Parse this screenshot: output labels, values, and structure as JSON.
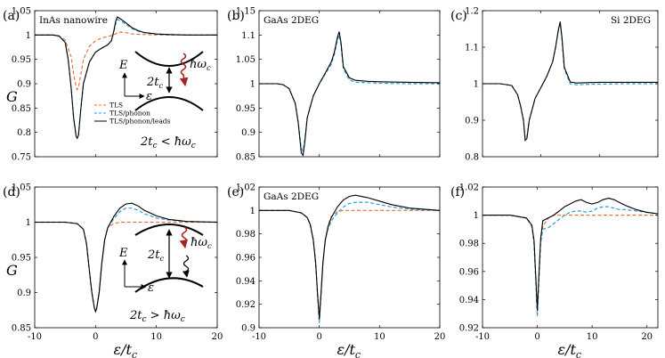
{
  "colors": {
    "tls": "#e8743b",
    "phonon": "#2a9ed8",
    "leads": "#000000",
    "arrow": "#a52525"
  },
  "legend": [
    "TLS",
    "TLS/phonon",
    "TLS/phonon/leads"
  ],
  "inset": {
    "e_label": "E",
    "eps_label": "ε",
    "gap_label": "2t",
    "gap_sub": "c",
    "photon_label": "ħω",
    "photon_sub": "c"
  },
  "axis_labels": {
    "x": "ε/t",
    "x_sub": "c",
    "y": "G"
  },
  "chart_data": [
    {
      "type": "line",
      "panel": "(a)",
      "title": "InAs nanowire",
      "xlim": [
        -10,
        20
      ],
      "ylim": [
        0.75,
        1.05
      ],
      "xticks": [],
      "yticks": [
        0.75,
        0.8,
        0.85,
        0.9,
        0.95,
        1,
        1.05
      ],
      "ytick_labels": [
        "0.75",
        "0.8",
        "0.85",
        "0.9",
        "0.95",
        "1",
        "1.05"
      ],
      "annotation": "2t_c < ħω_c",
      "series": [
        {
          "name": "TLS",
          "x": [
            -10,
            -7,
            -6,
            -5,
            -4,
            -3.6,
            -3.2,
            -3,
            -2.8,
            -2.4,
            -2,
            -1,
            0,
            1,
            2,
            3,
            3.5,
            4,
            5,
            6,
            8,
            10,
            15,
            20
          ],
          "y": [
            1,
            1,
            0.998,
            0.99,
            0.955,
            0.92,
            0.893,
            0.888,
            0.893,
            0.92,
            0.95,
            0.977,
            0.988,
            0.994,
            0.997,
            1.0,
            1.004,
            1.006,
            1.005,
            1.002,
            1.001,
            1,
            1,
            1
          ]
        },
        {
          "name": "TLS/phonon",
          "x": [
            -10,
            -7,
            -6,
            -5,
            -4.5,
            -4,
            -3.6,
            -3.2,
            -3,
            -2.8,
            -2.4,
            -2,
            -1,
            0,
            1,
            2,
            2.6,
            3,
            3.3,
            3.6,
            4,
            5,
            6,
            7,
            8,
            10,
            12,
            15,
            20
          ],
          "y": [
            1,
            1,
            0.998,
            0.985,
            0.95,
            0.89,
            0.83,
            0.792,
            0.788,
            0.795,
            0.85,
            0.9,
            0.945,
            0.965,
            0.973,
            0.98,
            0.988,
            1.005,
            1.023,
            1.032,
            1.03,
            1.022,
            1.013,
            1.008,
            1.005,
            1.002,
            1.001,
            1,
            1
          ]
        },
        {
          "name": "TLS/phonon/leads",
          "x": [
            -10,
            -7,
            -6,
            -5,
            -4.5,
            -4,
            -3.6,
            -3.2,
            -3,
            -2.8,
            -2.4,
            -2,
            -1,
            0,
            1,
            2,
            2.6,
            3,
            3.3,
            3.6,
            4,
            5,
            6,
            7,
            8,
            10,
            12,
            15,
            20
          ],
          "y": [
            1,
            1,
            0.998,
            0.985,
            0.95,
            0.89,
            0.83,
            0.792,
            0.788,
            0.795,
            0.85,
            0.9,
            0.945,
            0.965,
            0.973,
            0.98,
            0.988,
            1.008,
            1.028,
            1.037,
            1.034,
            1.025,
            1.015,
            1.009,
            1.005,
            1.002,
            1.001,
            1,
            1
          ]
        }
      ]
    },
    {
      "type": "line",
      "panel": "(b)",
      "title": "GaAs 2DEG",
      "xlim": [
        -10,
        20
      ],
      "ylim": [
        0.85,
        1.15
      ],
      "xticks": [],
      "yticks": [
        0.85,
        0.9,
        0.95,
        1,
        1.05,
        1.1,
        1.15
      ],
      "ytick_labels": [
        "0.85",
        "0.9",
        "0.95",
        "1",
        "1.05",
        "1.1",
        "1.15"
      ],
      "annotation": "",
      "series": [
        {
          "name": "TLS/phonon",
          "x": [
            -10,
            -7,
            -6,
            -5,
            -4,
            -3.5,
            -3,
            -2.7,
            -2.4,
            -2,
            -1,
            0,
            1,
            2,
            2.5,
            3,
            3.3,
            3.6,
            4,
            5,
            6,
            8,
            10,
            15,
            20
          ],
          "y": [
            1,
            1,
            0.998,
            0.99,
            0.96,
            0.92,
            0.868,
            0.862,
            0.885,
            0.93,
            0.975,
            1.0,
            1.02,
            1.04,
            1.06,
            1.09,
            1.1,
            1.08,
            1.03,
            1.008,
            1.003,
            1.002,
            1.001,
            1,
            1
          ]
        },
        {
          "name": "TLS/phonon/leads",
          "x": [
            -10,
            -7,
            -6,
            -5,
            -4,
            -3.5,
            -3,
            -2.7,
            -2.4,
            -2,
            -1,
            0,
            1,
            2,
            2.5,
            3,
            3.3,
            3.6,
            4,
            5,
            6,
            8,
            10,
            15,
            20
          ],
          "y": [
            1,
            1,
            0.998,
            0.99,
            0.96,
            0.92,
            0.858,
            0.853,
            0.88,
            0.93,
            0.975,
            1.0,
            1.022,
            1.045,
            1.065,
            1.095,
            1.107,
            1.085,
            1.035,
            1.012,
            1.007,
            1.005,
            1.004,
            1.003,
            1.002
          ]
        }
      ]
    },
    {
      "type": "line",
      "panel": "(c)",
      "title": "Si 2DEG",
      "xlim": [
        -10,
        20
      ],
      "ylim": [
        0.8,
        1.2
      ],
      "xticks": [],
      "yticks": [
        0.8,
        0.9,
        1,
        1.1,
        1.2
      ],
      "ytick_labels": [
        "0.8",
        "0.9",
        "1",
        "1.1",
        "1.2"
      ],
      "annotation": "",
      "series": [
        {
          "name": "TLS/phonon",
          "x": [
            -10,
            -7,
            -5,
            -4,
            -3.5,
            -3,
            -2.7,
            -2.4,
            -2,
            -1,
            0,
            1,
            2,
            2.5,
            3,
            3.3,
            3.6,
            4,
            5,
            6,
            8,
            10,
            15,
            20
          ],
          "y": [
            1,
            1,
            0.995,
            0.97,
            0.94,
            0.9,
            0.85,
            0.855,
            0.9,
            0.96,
            0.99,
            1.02,
            1.06,
            1.1,
            1.15,
            1.165,
            1.12,
            1.04,
            1.0,
            0.997,
            0.998,
            0.999,
            1,
            1
          ]
        },
        {
          "name": "TLS/phonon/leads",
          "x": [
            -10,
            -7,
            -5,
            -4,
            -3.5,
            -3,
            -2.7,
            -2.4,
            -2,
            -1,
            0,
            1,
            2,
            2.5,
            3,
            3.3,
            3.6,
            4,
            5,
            6,
            8,
            10,
            15,
            20
          ],
          "y": [
            1,
            1,
            0.995,
            0.97,
            0.94,
            0.9,
            0.845,
            0.85,
            0.9,
            0.96,
            0.99,
            1.02,
            1.06,
            1.1,
            1.15,
            1.17,
            1.125,
            1.045,
            1.005,
            1.002,
            1.003,
            1.004,
            1.004,
            1.004
          ]
        }
      ]
    },
    {
      "type": "line",
      "panel": "(d)",
      "title": "",
      "xlim": [
        -10,
        20
      ],
      "ylim": [
        0.85,
        1.05
      ],
      "xticks": [
        -10,
        0,
        10,
        20
      ],
      "xtick_labels": [
        "-10",
        "0",
        "10",
        "20"
      ],
      "yticks": [
        0.85,
        0.9,
        0.95,
        1,
        1.05
      ],
      "ytick_labels": [
        "0.85",
        "0.9",
        "0.95",
        "1",
        "1.05"
      ],
      "annotation": "2t_c > ħω_c",
      "series": [
        {
          "name": "TLS",
          "x": [
            -10,
            -5,
            -3,
            -2,
            -1.5,
            -1,
            -0.6,
            -0.2,
            0,
            0.2,
            0.6,
            1,
            1.5,
            2,
            3,
            4,
            5,
            10,
            20
          ],
          "y": [
            1,
            1,
            0.998,
            0.99,
            0.97,
            0.93,
            0.9,
            0.878,
            0.875,
            0.878,
            0.9,
            0.94,
            0.975,
            0.992,
            0.998,
            1,
            1,
            1,
            1
          ]
        },
        {
          "name": "TLS/phonon",
          "x": [
            -10,
            -5,
            -3,
            -2,
            -1.5,
            -1,
            -0.6,
            -0.2,
            0,
            0.2,
            0.6,
            1,
            1.5,
            2,
            3,
            4,
            5,
            6,
            7,
            8,
            10,
            12,
            15,
            20
          ],
          "y": [
            1,
            1,
            0.998,
            0.99,
            0.97,
            0.93,
            0.9,
            0.878,
            0.873,
            0.878,
            0.9,
            0.94,
            0.975,
            0.992,
            1.005,
            1.015,
            1.02,
            1.02,
            1.017,
            1.012,
            1.006,
            1.003,
            1.001,
            1
          ]
        },
        {
          "name": "TLS/phonon/leads",
          "x": [
            -10,
            -5,
            -3,
            -2,
            -1.5,
            -1,
            -0.6,
            -0.2,
            0,
            0.2,
            0.6,
            1,
            1.5,
            2,
            3,
            4,
            5,
            6,
            7,
            8,
            10,
            12,
            15,
            20
          ],
          "y": [
            1,
            1,
            0.998,
            0.99,
            0.97,
            0.93,
            0.9,
            0.878,
            0.873,
            0.878,
            0.9,
            0.94,
            0.975,
            0.992,
            1.008,
            1.02,
            1.026,
            1.027,
            1.023,
            1.017,
            1.009,
            1.004,
            1.001,
            1
          ]
        }
      ]
    },
    {
      "type": "line",
      "panel": "(e)",
      "title": "GaAs 2DEG",
      "xlim": [
        -10,
        20
      ],
      "ylim": [
        0.9,
        1.02
      ],
      "xticks": [
        -10,
        0,
        10,
        20
      ],
      "xtick_labels": [
        "-10",
        "0",
        "10",
        "20"
      ],
      "yticks": [
        0.9,
        0.92,
        0.94,
        0.96,
        0.98,
        1,
        1.02
      ],
      "ytick_labels": [
        "0.9",
        "0.92",
        "0.94",
        "0.96",
        "0.98",
        "1",
        "1.02"
      ],
      "annotation": "",
      "series": [
        {
          "name": "TLS",
          "x": [
            -10,
            -5,
            -3,
            -2,
            -1.5,
            -1,
            -0.6,
            -0.3,
            0,
            0.3,
            0.6,
            1,
            1.5,
            2,
            3,
            4,
            5,
            10,
            20
          ],
          "y": [
            1,
            1,
            0.998,
            0.994,
            0.988,
            0.975,
            0.955,
            0.93,
            0.91,
            0.93,
            0.955,
            0.975,
            0.988,
            0.995,
            0.999,
            1,
            1,
            1,
            1
          ]
        },
        {
          "name": "TLS/phonon",
          "x": [
            -10,
            -5,
            -3,
            -2,
            -1.5,
            -1,
            -0.6,
            -0.3,
            0,
            0.3,
            0.6,
            1,
            1.5,
            2,
            3,
            4,
            5,
            6,
            8,
            10,
            12,
            15,
            20
          ],
          "y": [
            1,
            1,
            0.998,
            0.994,
            0.988,
            0.975,
            0.955,
            0.93,
            0.904,
            0.93,
            0.955,
            0.975,
            0.985,
            0.991,
            0.998,
            1.003,
            1.006,
            1.007,
            1.007,
            1.005,
            1.003,
            1.001,
            1
          ]
        },
        {
          "name": "TLS/phonon/leads",
          "x": [
            -10,
            -5,
            -3,
            -2,
            -1.5,
            -1,
            -0.6,
            -0.3,
            0,
            0.3,
            0.6,
            1,
            1.5,
            2,
            3,
            4,
            5,
            6,
            8,
            10,
            12,
            15,
            20
          ],
          "y": [
            1,
            1,
            0.998,
            0.994,
            0.988,
            0.975,
            0.955,
            0.93,
            0.907,
            0.93,
            0.955,
            0.975,
            0.987,
            0.994,
            1.003,
            1.009,
            1.012,
            1.013,
            1.011,
            1.008,
            1.005,
            1.002,
            1
          ]
        }
      ]
    },
    {
      "type": "line",
      "panel": "(f)",
      "title": "",
      "xlim": [
        -10,
        22
      ],
      "ylim": [
        0.92,
        1.02
      ],
      "xticks": [
        -10,
        0,
        10,
        20
      ],
      "xtick_labels": [
        "-10",
        "0",
        "10",
        "20"
      ],
      "yticks": [
        0.92,
        0.94,
        0.96,
        0.98,
        1,
        1.02
      ],
      "ytick_labels": [
        "0.92",
        "0.94",
        "0.96",
        "0.98",
        "1",
        "1.02"
      ],
      "annotation": "",
      "series": [
        {
          "name": "TLS",
          "x": [
            -10,
            -5,
            -2,
            -1,
            -0.6,
            -0.3,
            0,
            0.3,
            0.6,
            1,
            2,
            3,
            4,
            10,
            22
          ],
          "y": [
            1,
            1,
            0.998,
            0.992,
            0.98,
            0.955,
            0.932,
            0.955,
            0.98,
            0.992,
            0.998,
            1,
            1,
            1,
            1
          ]
        },
        {
          "name": "TLS/phonon",
          "x": [
            -10,
            -5,
            -2,
            -1,
            -0.6,
            -0.3,
            0,
            0.3,
            0.6,
            1,
            2,
            3,
            4,
            5,
            6,
            7,
            8,
            9,
            10,
            11,
            12,
            13,
            14,
            15,
            16,
            18,
            20,
            22
          ],
          "y": [
            1,
            1,
            0.998,
            0.992,
            0.98,
            0.955,
            0.928,
            0.955,
            0.98,
            0.99,
            0.991,
            0.994,
            0.997,
            1.0,
            1.002,
            1.003,
            1.003,
            1.002,
            1.003,
            1.005,
            1.006,
            1.006,
            1.005,
            1.004,
            1.004,
            1.003,
            1.002,
            1.001
          ]
        },
        {
          "name": "TLS/phonon/leads",
          "x": [
            -10,
            -5,
            -2,
            -1,
            -0.6,
            -0.3,
            0,
            0.3,
            0.6,
            1,
            2,
            3,
            4,
            5,
            6,
            7,
            8,
            9,
            10,
            11,
            12,
            13,
            14,
            15,
            16,
            18,
            20,
            22
          ],
          "y": [
            1,
            1,
            0.998,
            0.993,
            0.982,
            0.958,
            0.932,
            0.958,
            0.983,
            0.996,
            0.998,
            1.0,
            1.003,
            1.006,
            1.008,
            1.01,
            1.011,
            1.009,
            1.008,
            1.009,
            1.011,
            1.012,
            1.011,
            1.009,
            1.007,
            1.004,
            1.002,
            1.001
          ]
        }
      ]
    }
  ]
}
